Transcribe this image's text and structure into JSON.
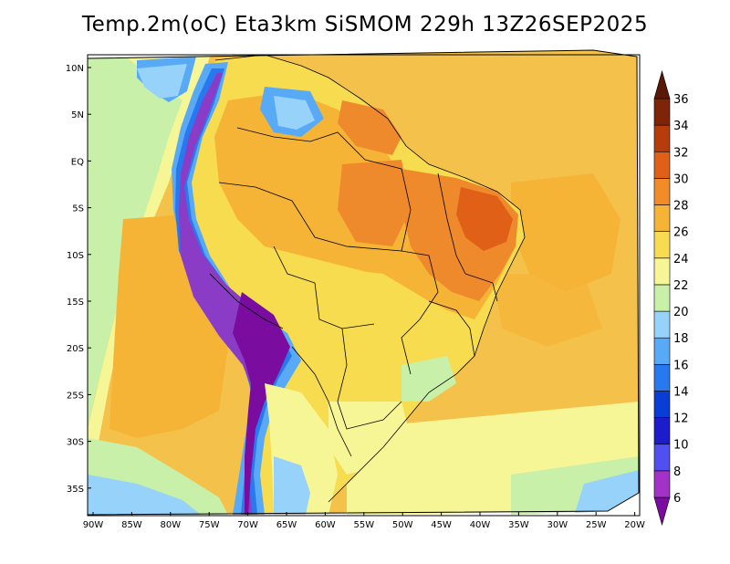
{
  "title": "Temp.2m(oC) Eta3km SiSMOM 229h 13Z26SEP2025",
  "lat_labels": [
    "10N",
    "5N",
    "EQ",
    "5S",
    "10S",
    "15S",
    "20S",
    "25S",
    "30S",
    "35S"
  ],
  "lon_labels": [
    "90W",
    "85W",
    "80W",
    "75W",
    "70W",
    "65W",
    "60W",
    "55W",
    "50W",
    "45W",
    "40W",
    "35W",
    "30W",
    "25W",
    "20W"
  ],
  "colorbar": {
    "unit": "oC",
    "ticks": [
      "6",
      "8",
      "10",
      "12",
      "14",
      "16",
      "18",
      "20",
      "22",
      "24",
      "26",
      "28",
      "30",
      "32",
      "34",
      "36"
    ],
    "colors": [
      "#7a0da0",
      "#a232c8",
      "#5050f0",
      "#1c1ccc",
      "#0a3cd6",
      "#2878f0",
      "#58aaf6",
      "#96d2fa",
      "#c8f0a8",
      "#f6f696",
      "#f6dc4e",
      "#f6b436",
      "#f28c28",
      "#e06018",
      "#b63c0c",
      "#7e2408",
      "#5a1806"
    ]
  },
  "legend_colors": {
    "ocean": "#f6c04a",
    "ocean_north": "#f2c84c",
    "land_warm": "#f6b436",
    "land_hot": "#ee8a2c",
    "andes_cold": "#8a3cc6",
    "andes_cool": "#3a74e8",
    "coast_cool": "#96d2fa",
    "south_ocean": "#f6f696",
    "pacific_green": "#c8f0a8"
  }
}
